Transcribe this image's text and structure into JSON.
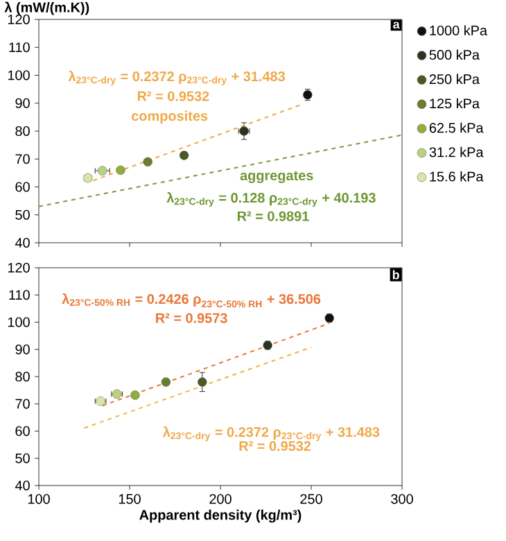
{
  "chart_data": [
    {
      "type": "scatter",
      "ylabel": "λ (mW/(m.K))",
      "xlim": [
        100,
        300
      ],
      "xticks": [
        100,
        150,
        200,
        250,
        300
      ],
      "ylim": [
        40,
        120
      ],
      "yticks": [
        40,
        50,
        60,
        70,
        80,
        90,
        100,
        110,
        120
      ],
      "tick_labels": "y",
      "legend": "right",
      "annotations": [
        "a",
        "λ$_{23°C-dry}$ = 0.2372 ρ$_{23°C-dry}$ + 31.483",
        "R² = 0.9532",
        "composites",
        "aggregates",
        "λ$_{23°C-dry}$ = 0.128 ρ$_{23°C-dry}$ + 40.193",
        "R² = 0.9891"
      ],
      "series": [
        {
          "name": "1000 kPa",
          "color": "#111111",
          "marker": "circle",
          "x": [
            248
          ],
          "values": [
            93
          ],
          "errors": [
            2
          ]
        },
        {
          "name": "500 kPa",
          "color": "#2b3320",
          "marker": "circle",
          "x": [
            213
          ],
          "values": [
            80
          ],
          "errors": [
            3
          ],
          "xerrors": [
            3
          ]
        },
        {
          "name": "250 kPa",
          "color": "#4a5a22",
          "marker": "circle",
          "x": [
            180
          ],
          "values": [
            71.3
          ]
        },
        {
          "name": "125 kPa",
          "color": "#6a7e2c",
          "marker": "circle",
          "x": [
            160
          ],
          "values": [
            69
          ]
        },
        {
          "name": "62.5 kPa",
          "color": "#8fae3c",
          "marker": "circle",
          "x": [
            145
          ],
          "values": [
            66
          ]
        },
        {
          "name": "31.2 kPa",
          "color": "#bcd27a",
          "marker": "circle",
          "x": [
            135
          ],
          "values": [
            65.8
          ],
          "xerrors": [
            4
          ]
        },
        {
          "name": "15.6 kPa",
          "color": "#d8e6a8",
          "marker": "circle",
          "x": [
            127
          ],
          "values": [
            63.2
          ],
          "xerrors": [
            2
          ]
        },
        {
          "type": "line",
          "color": "#f0a848",
          "line_style": "dashed",
          "x": [
            130,
            245
          ],
          "values": [
            62.3,
            89.6
          ]
        },
        {
          "type": "line",
          "color": "#7a9a3a",
          "line_style": "dashed",
          "x": [
            100,
            300
          ],
          "values": [
            53,
            78.6
          ]
        }
      ]
    },
    {
      "type": "scatter",
      "xlabel": "Apparent density (kg/m³)",
      "xlim": [
        100,
        300
      ],
      "xticks": [
        100,
        150,
        200,
        250,
        300
      ],
      "ylim": [
        40,
        120
      ],
      "yticks": [
        40,
        50,
        60,
        70,
        80,
        90,
        100,
        110,
        120
      ],
      "annotations": [
        "b",
        "\\text{λ}_{\\text{23°C-50\\% RH}}\\text{ = 0.2426 ρ}_{\\text{23°C-50\\% RH}}\\text{ + 36.506}",
        "R² = 0.9573",
        "λ$_{23°C-dry}$ = 0.2372 ρ$_{23°C-dry}$ + 31.483",
        "R² = 0.9532"
      ],
      "series": [
        {
          "color": "#111111",
          "marker": "circle",
          "x": [
            260
          ],
          "values": [
            101.5
          ],
          "errors": [
            1.5
          ]
        },
        {
          "color": "#2b3320",
          "marker": "circle",
          "x": [
            226
          ],
          "values": [
            91.5
          ],
          "errors": [
            1.5
          ]
        },
        {
          "color": "#4a5a22",
          "marker": "circle",
          "x": [
            190
          ],
          "values": [
            78
          ],
          "errors": [
            3.5
          ]
        },
        {
          "color": "#6a7e2c",
          "marker": "circle",
          "x": [
            170
          ],
          "values": [
            78
          ]
        },
        {
          "color": "#8fae3c",
          "marker": "circle",
          "x": [
            153
          ],
          "values": [
            73.2
          ]
        },
        {
          "color": "#bcd27a",
          "marker": "circle",
          "x": [
            143
          ],
          "values": [
            73.6
          ],
          "xerrors": [
            3
          ]
        },
        {
          "color": "#d8e6a8",
          "marker": "circle",
          "x": [
            134
          ],
          "values": [
            71
          ],
          "xerrors": [
            3
          ]
        },
        {
          "type": "line",
          "color": "#e87838",
          "line_style": "dashed",
          "x": [
            135,
            260
          ],
          "values": [
            69.3,
            99.6
          ]
        },
        {
          "type": "line",
          "color": "#f0b448",
          "line_style": "dashed",
          "x": [
            125,
            250
          ],
          "values": [
            61.1,
            90.8
          ]
        }
      ]
    }
  ]
}
